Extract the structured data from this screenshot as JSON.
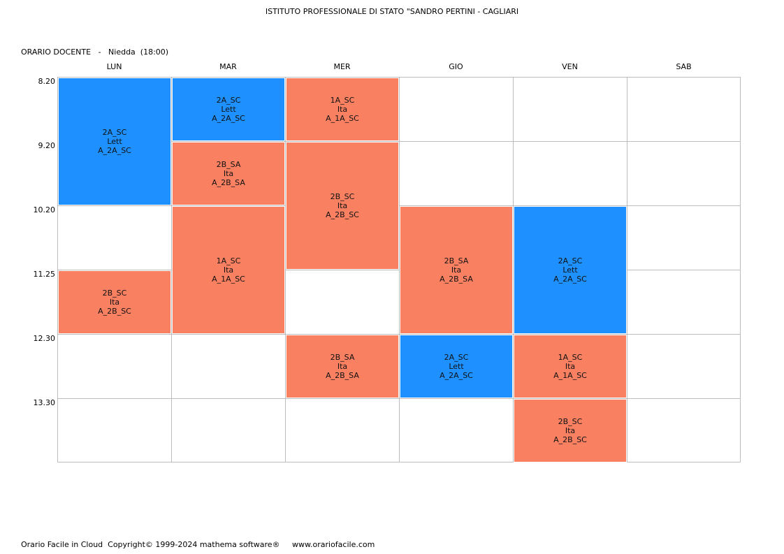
{
  "header": {
    "school": "ISTITUTO PROFESSIONALE DI STATO \"SANDRO PERTINI - CAGLIARI",
    "teacher_line": "ORARIO DOCENTE   -   Niedda  (18:00)"
  },
  "days": [
    "LUN",
    "MAR",
    "MER",
    "GIO",
    "VEN",
    "SAB"
  ],
  "times": [
    "8.20",
    "9.20",
    "10.20",
    "11.25",
    "12.30",
    "13.30"
  ],
  "colors": {
    "lett": "#1e90ff",
    "ita": "#fa8062",
    "grid": "#bdbdbd"
  },
  "lessons": [
    {
      "day": "LUN",
      "start": "8.20",
      "periods": 2,
      "cls": "2A_SC",
      "subject": "Lett",
      "room": "A_2A_SC",
      "color": "blue"
    },
    {
      "day": "LUN",
      "start": "11.25",
      "periods": 1,
      "cls": "2B_SC",
      "subject": "Ita",
      "room": "A_2B_SC",
      "color": "orange"
    },
    {
      "day": "MAR",
      "start": "8.20",
      "periods": 1,
      "cls": "2A_SC",
      "subject": "Lett",
      "room": "A_2A_SC",
      "color": "blue"
    },
    {
      "day": "MAR",
      "start": "9.20",
      "periods": 1,
      "cls": "2B_SA",
      "subject": "Ita",
      "room": "A_2B_SA",
      "color": "orange"
    },
    {
      "day": "MAR",
      "start": "10.20",
      "periods": 2,
      "cls": "1A_SC",
      "subject": "Ita",
      "room": "A_1A_SC",
      "color": "orange"
    },
    {
      "day": "MER",
      "start": "8.20",
      "periods": 1,
      "cls": "1A_SC",
      "subject": "Ita",
      "room": "A_1A_SC",
      "color": "orange"
    },
    {
      "day": "MER",
      "start": "9.20",
      "periods": 2,
      "cls": "2B_SC",
      "subject": "Ita",
      "room": "A_2B_SC",
      "color": "orange"
    },
    {
      "day": "MER",
      "start": "12.30",
      "periods": 1,
      "cls": "2B_SA",
      "subject": "Ita",
      "room": "A_2B_SA",
      "color": "orange"
    },
    {
      "day": "GIO",
      "start": "10.20",
      "periods": 2,
      "cls": "2B_SA",
      "subject": "Ita",
      "room": "A_2B_SA",
      "color": "orange"
    },
    {
      "day": "GIO",
      "start": "12.30",
      "periods": 1,
      "cls": "2A_SC",
      "subject": "Lett",
      "room": "A_2A_SC",
      "color": "blue"
    },
    {
      "day": "VEN",
      "start": "10.20",
      "periods": 2,
      "cls": "2A_SC",
      "subject": "Lett",
      "room": "A_2A_SC",
      "color": "blue"
    },
    {
      "day": "VEN",
      "start": "12.30",
      "periods": 1,
      "cls": "1A_SC",
      "subject": "Ita",
      "room": "A_1A_SC",
      "color": "orange"
    },
    {
      "day": "VEN",
      "start": "13.30",
      "periods": 1,
      "cls": "2B_SC",
      "subject": "Ita",
      "room": "A_2B_SC",
      "color": "orange"
    }
  ],
  "footer": {
    "text": "Orario Facile in Cloud  Copyright© 1999-2024 mathema software®     www.orariofacile.com"
  }
}
